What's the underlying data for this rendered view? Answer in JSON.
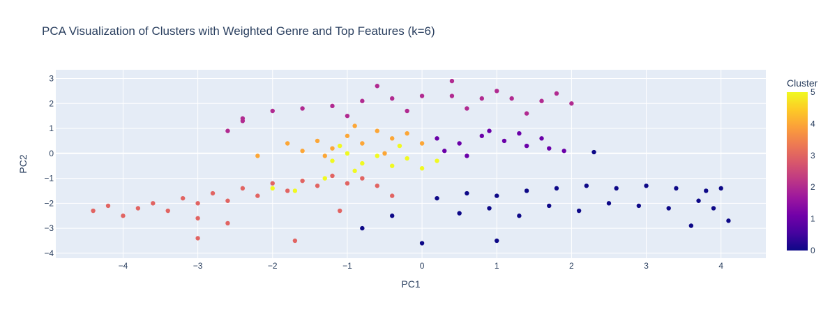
{
  "chart_data": {
    "type": "scatter",
    "title": "PCA Visualization of Clusters with Weighted Genre and Top Features (k=6)",
    "xlabel": "PC1",
    "ylabel": "PC2",
    "xlim": [
      -4.9,
      4.6
    ],
    "ylim": [
      -4.2,
      3.35
    ],
    "xticks": [
      -4,
      -3,
      -2,
      -1,
      0,
      1,
      2,
      3,
      4
    ],
    "yticks": [
      -4,
      -3,
      -2,
      -1,
      0,
      1,
      2,
      3
    ],
    "grid": true,
    "colorbar": {
      "title": "Cluster",
      "range": [
        0,
        5
      ],
      "ticks": [
        0,
        1,
        2,
        3,
        4,
        5
      ],
      "colorscale": [
        "#0d0887",
        "#46039f",
        "#7201a8",
        "#9c179e",
        "#bd3786",
        "#d8576b",
        "#ed7953",
        "#fb9f3a",
        "#fdca26",
        "#f0f921"
      ]
    },
    "series": [
      {
        "cluster": 0,
        "color": "#0d0887",
        "points": [
          [
            0.2,
            -1.8
          ],
          [
            0.6,
            -1.6
          ],
          [
            1.0,
            -1.7
          ],
          [
            1.4,
            -1.5
          ],
          [
            1.8,
            -1.4
          ],
          [
            2.2,
            -1.3
          ],
          [
            2.6,
            -1.4
          ],
          [
            3.0,
            -1.3
          ],
          [
            3.4,
            -1.4
          ],
          [
            3.8,
            -1.5
          ],
          [
            4.0,
            -1.4
          ],
          [
            0.5,
            -2.4
          ],
          [
            0.9,
            -2.2
          ],
          [
            1.3,
            -2.5
          ],
          [
            1.7,
            -2.1
          ],
          [
            2.1,
            -2.3
          ],
          [
            2.5,
            -2.0
          ],
          [
            2.9,
            -2.1
          ],
          [
            3.3,
            -2.2
          ],
          [
            3.7,
            -1.9
          ],
          [
            -0.4,
            -2.5
          ],
          [
            -0.8,
            -3.0
          ],
          [
            0.0,
            -3.6
          ],
          [
            1.0,
            -3.5
          ],
          [
            2.3,
            0.05
          ],
          [
            3.6,
            -2.9
          ],
          [
            4.1,
            -2.7
          ],
          [
            3.9,
            -2.2
          ]
        ]
      },
      {
        "cluster": 1,
        "color": "#6a00a8",
        "points": [
          [
            0.2,
            0.6
          ],
          [
            0.5,
            0.4
          ],
          [
            0.8,
            0.7
          ],
          [
            1.1,
            0.5
          ],
          [
            1.4,
            0.3
          ],
          [
            1.7,
            0.2
          ],
          [
            0.3,
            0.1
          ],
          [
            0.9,
            0.9
          ],
          [
            1.3,
            0.8
          ],
          [
            0.6,
            -0.1
          ],
          [
            1.6,
            0.6
          ],
          [
            1.9,
            0.1
          ]
        ]
      },
      {
        "cluster": 2,
        "color": "#b12a90",
        "points": [
          [
            -2.4,
            1.4
          ],
          [
            -2.0,
            1.7
          ],
          [
            -1.6,
            1.8
          ],
          [
            -1.2,
            1.9
          ],
          [
            -0.8,
            2.1
          ],
          [
            -0.4,
            2.2
          ],
          [
            0.0,
            2.3
          ],
          [
            0.4,
            2.3
          ],
          [
            0.8,
            2.2
          ],
          [
            1.2,
            2.2
          ],
          [
            1.6,
            2.1
          ],
          [
            2.0,
            2.0
          ],
          [
            -1.0,
            1.5
          ],
          [
            -0.2,
            1.7
          ],
          [
            0.6,
            1.8
          ],
          [
            1.4,
            1.6
          ],
          [
            -2.4,
            1.3
          ],
          [
            -2.6,
            0.9
          ],
          [
            0.4,
            2.9
          ],
          [
            -0.6,
            2.7
          ],
          [
            1.0,
            2.5
          ],
          [
            1.8,
            2.4
          ]
        ]
      },
      {
        "cluster": 3,
        "color": "#e16462",
        "points": [
          [
            -4.4,
            -2.3
          ],
          [
            -4.2,
            -2.1
          ],
          [
            -4.0,
            -2.5
          ],
          [
            -3.8,
            -2.2
          ],
          [
            -3.6,
            -2.0
          ],
          [
            -3.4,
            -2.3
          ],
          [
            -3.2,
            -1.8
          ],
          [
            -3.0,
            -2.0
          ],
          [
            -2.8,
            -1.6
          ],
          [
            -2.6,
            -1.9
          ],
          [
            -2.4,
            -1.4
          ],
          [
            -2.2,
            -1.7
          ],
          [
            -2.0,
            -1.2
          ],
          [
            -1.8,
            -1.5
          ],
          [
            -1.6,
            -1.1
          ],
          [
            -1.4,
            -1.3
          ],
          [
            -1.2,
            -0.9
          ],
          [
            -1.0,
            -1.2
          ],
          [
            -0.8,
            -1.0
          ],
          [
            -0.6,
            -1.3
          ],
          [
            -3.0,
            -2.6
          ],
          [
            -2.6,
            -2.8
          ],
          [
            -3.0,
            -3.4
          ],
          [
            -1.7,
            -3.5
          ],
          [
            -0.4,
            -1.7
          ],
          [
            -1.1,
            -2.3
          ]
        ]
      },
      {
        "cluster": 4,
        "color": "#fca636",
        "points": [
          [
            -1.8,
            0.4
          ],
          [
            -1.6,
            0.1
          ],
          [
            -1.4,
            0.5
          ],
          [
            -1.2,
            0.2
          ],
          [
            -1.0,
            0.7
          ],
          [
            -0.8,
            0.4
          ],
          [
            -0.6,
            0.9
          ],
          [
            -0.4,
            0.6
          ],
          [
            -0.2,
            0.8
          ],
          [
            0.0,
            0.4
          ],
          [
            -0.9,
            1.1
          ],
          [
            -0.5,
            0.0
          ],
          [
            -1.3,
            -0.1
          ],
          [
            -2.2,
            -0.1
          ]
        ]
      },
      {
        "cluster": 5,
        "color": "#f0f921",
        "points": [
          [
            -1.2,
            -0.3
          ],
          [
            -1.0,
            0.0
          ],
          [
            -0.8,
            -0.4
          ],
          [
            -0.6,
            -0.1
          ],
          [
            -0.4,
            -0.5
          ],
          [
            -0.2,
            -0.2
          ],
          [
            0.0,
            -0.6
          ],
          [
            0.2,
            -0.3
          ],
          [
            -0.9,
            -0.7
          ],
          [
            -0.3,
            0.3
          ],
          [
            -1.1,
            0.3
          ],
          [
            -2.0,
            -1.4
          ],
          [
            -1.7,
            -1.5
          ],
          [
            -1.3,
            -1.0
          ]
        ]
      }
    ]
  }
}
